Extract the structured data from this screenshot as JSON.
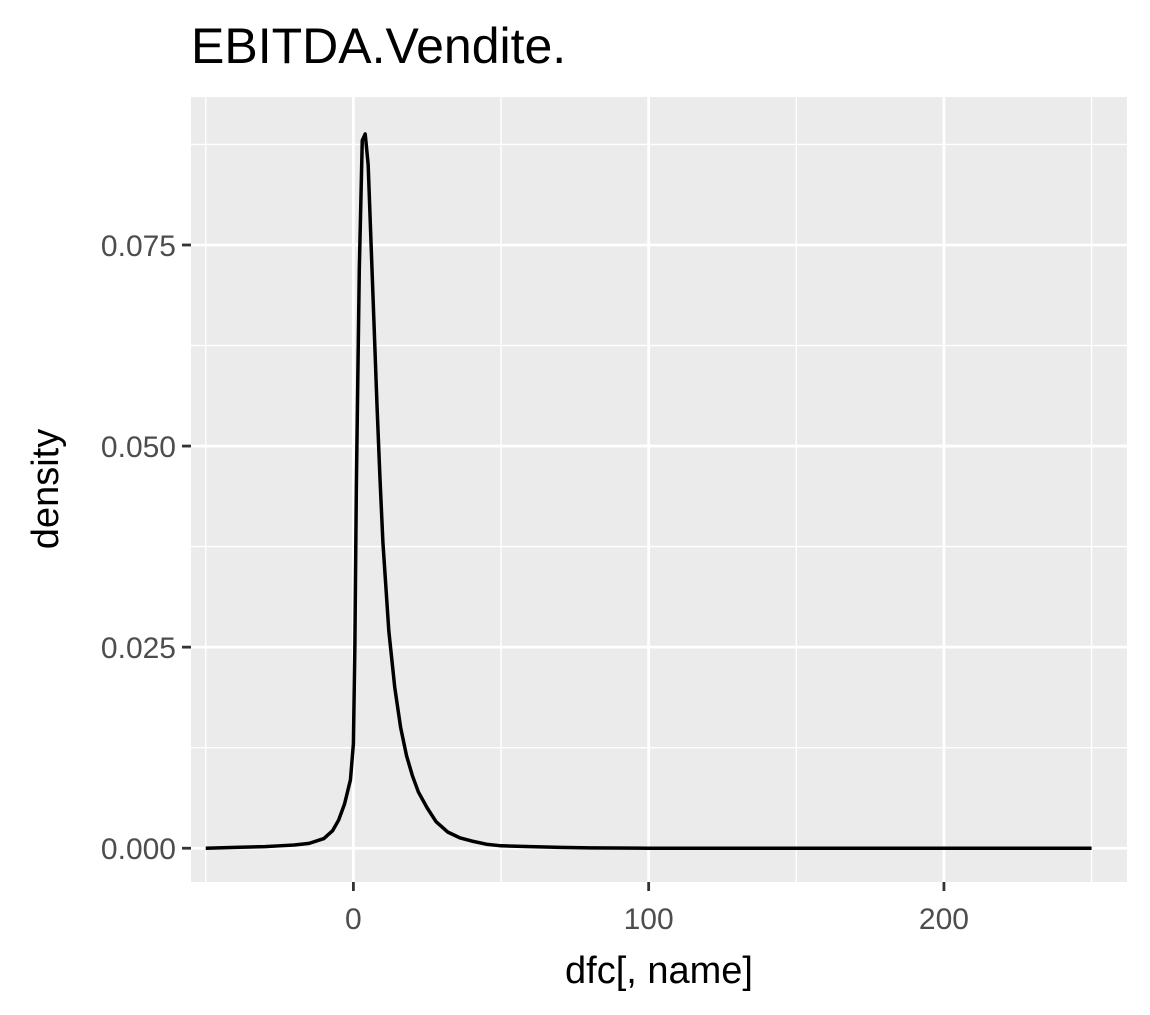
{
  "chart_data": {
    "type": "line",
    "title": "EBITDA.Vendite.",
    "xlabel": "dfc[, name]",
    "ylabel": "density",
    "xlim": [
      -55,
      262
    ],
    "ylim": [
      -0.0042,
      0.0934
    ],
    "x_ticks": [
      0,
      100,
      200
    ],
    "x_tick_labels": [
      "0",
      "100",
      "200"
    ],
    "x_minor_ticks": [
      -50,
      50,
      150,
      250
    ],
    "y_ticks": [
      0,
      0.025,
      0.05,
      0.075
    ],
    "y_tick_labels": [
      "0.000",
      "0.025",
      "0.050",
      "0.075"
    ],
    "y_minor_ticks": [
      0.0125,
      0.0375,
      0.0625,
      0.0875
    ],
    "grid": true,
    "panel_background": "#ebebeb",
    "grid_color": "#ffffff",
    "line_color": "#000000",
    "series": [
      {
        "x": [
          -50,
          -40,
          -30,
          -25,
          -20,
          -15,
          -10,
          -7,
          -5,
          -3,
          -1,
          0,
          0.5,
          1,
          2,
          3,
          4,
          5,
          6,
          7,
          8,
          9,
          10,
          12,
          14,
          16,
          18,
          20,
          22,
          25,
          28,
          32,
          36,
          40,
          45,
          50,
          60,
          70,
          80,
          100,
          120,
          150,
          200,
          250
        ],
        "y": [
          0.0,
          0.0001,
          0.0002,
          0.0003,
          0.0004,
          0.0006,
          0.0012,
          0.0022,
          0.0035,
          0.0055,
          0.0085,
          0.013,
          0.025,
          0.045,
          0.072,
          0.088,
          0.0888,
          0.085,
          0.075,
          0.065,
          0.055,
          0.046,
          0.038,
          0.027,
          0.02,
          0.015,
          0.0115,
          0.009,
          0.007,
          0.005,
          0.0033,
          0.002,
          0.0013,
          0.0009,
          0.0005,
          0.0003,
          0.0002,
          0.0001,
          5e-05,
          0.0,
          0.0,
          0.0,
          0.0,
          0.0
        ]
      }
    ]
  }
}
